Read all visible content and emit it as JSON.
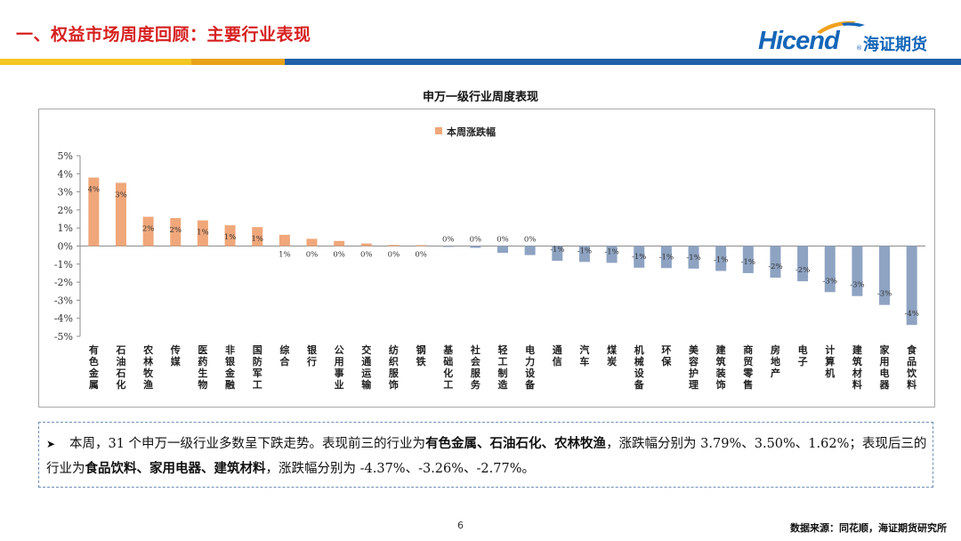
{
  "header": {
    "title": "一、权益市场周度回顾：主要行业表现",
    "logo_text": "Hicend",
    "logo_reg": "®",
    "logo_cn": "海证期货",
    "strip_colors": [
      "#f3c623",
      "#f3c623",
      "#e8a317",
      "#1f5fa8",
      "#1f5fa8"
    ]
  },
  "chart_data": {
    "type": "bar",
    "title": "申万一级行业周度表现",
    "legend": "本周涨跌幅",
    "legend_position": "top-center",
    "ylim": [
      -5,
      5
    ],
    "yticks": [
      "5%",
      "4%",
      "3%",
      "2%",
      "1%",
      "0%",
      "-1%",
      "-2%",
      "-3%",
      "-4%",
      "-5%"
    ],
    "grid": false,
    "positive_color": "#f0a77a",
    "negative_color": "#8ea3c2",
    "categories": [
      "有色金属",
      "石油石化",
      "农林牧渔",
      "传媒",
      "医药生物",
      "非银金融",
      "国防军工",
      "综合",
      "银行",
      "公用事业",
      "交通运输",
      "纺织服饰",
      "钢铁",
      "基础化工",
      "社会服务",
      "轻工制造",
      "电力设备",
      "通信",
      "汽车",
      "煤炭",
      "机械设备",
      "环保",
      "美容护理",
      "建筑装饰",
      "商贸零售",
      "房地产",
      "电子",
      "计算机",
      "建筑材料",
      "家用电器",
      "食品饮料"
    ],
    "values": [
      3.79,
      3.5,
      1.62,
      1.55,
      1.42,
      1.15,
      1.05,
      0.62,
      0.4,
      0.28,
      0.14,
      0.06,
      0.05,
      -0.05,
      -0.1,
      -0.38,
      -0.5,
      -0.82,
      -0.88,
      -0.93,
      -1.2,
      -1.22,
      -1.25,
      -1.38,
      -1.5,
      -1.75,
      -1.95,
      -2.55,
      -2.77,
      -3.26,
      -4.37
    ],
    "data_labels": [
      "4%",
      "3%",
      "2%",
      "2%",
      "1%",
      "1%",
      "1%",
      "1%",
      "0%",
      "0%",
      "0%",
      "0%",
      "0%",
      "0%",
      "0%",
      "0%",
      "0%",
      "-1%",
      "-1%",
      "-1%",
      "-1%",
      "-1%",
      "-1%",
      "-1%",
      "-1%",
      "-2%",
      "-2%",
      "-3%",
      "-3%",
      "-3%",
      "-4%"
    ]
  },
  "summary": {
    "p1": "本周，31 个申万一级行业多数呈下跌走势。表现前三的行业为",
    "top3": "有色金属、石油石化、农林牧渔",
    "p2": "，涨跌幅分别为 3.79%、3.50%、1.62%；表现后三的行业为",
    "bottom3": "食品饮料、家用电器、建筑材料",
    "p3": "，涨跌幅分别为 -4.37%、-3.26%、-2.77%。"
  },
  "footer": {
    "page": "6",
    "source": "数据来源：同花顺，海证期货研究所"
  }
}
